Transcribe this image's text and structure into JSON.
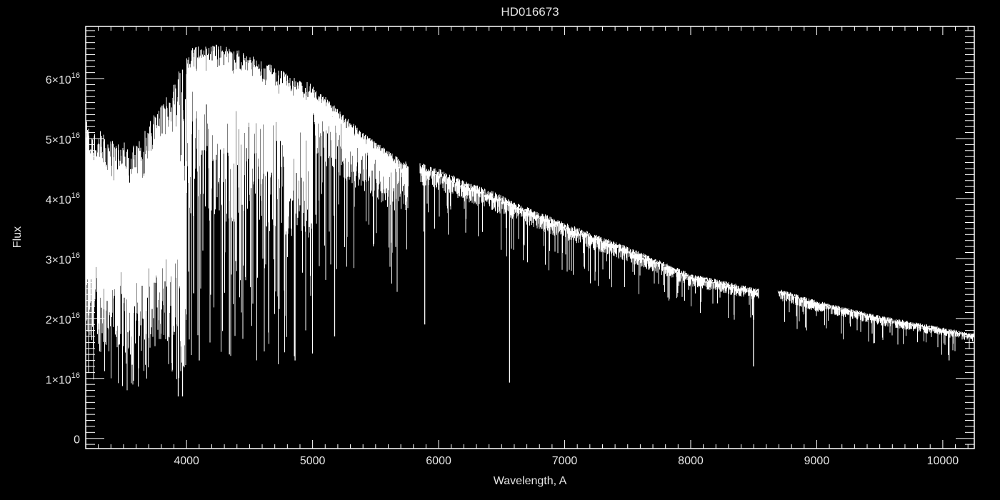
{
  "chart_data": {
    "type": "line",
    "title": "HD016673",
    "xlabel": "Wavelength, A",
    "ylabel": "Flux",
    "xlim": [
      3200,
      10250
    ],
    "ylim": [
      -1700000000000000.0,
      6.87e+16
    ],
    "x_ticks": [
      4000,
      5000,
      6000,
      7000,
      8000,
      9000,
      10000
    ],
    "x_tick_labels": [
      "4000",
      "5000",
      "6000",
      "7000",
      "8000",
      "9000",
      "10000"
    ],
    "y_ticks": [
      0,
      1e+16,
      2e+16,
      3e+16,
      4e+16,
      5e+16,
      6e+16
    ],
    "y_tick_labels": [
      {
        "mantissa": "0",
        "exponent": ""
      },
      {
        "mantissa": "1×10",
        "exponent": "16"
      },
      {
        "mantissa": "2×10",
        "exponent": "16"
      },
      {
        "mantissa": "3×10",
        "exponent": "16"
      },
      {
        "mantissa": "4×10",
        "exponent": "16"
      },
      {
        "mantissa": "5×10",
        "exponent": "16"
      },
      {
        "mantissa": "6×10",
        "exponent": "16"
      }
    ],
    "grid": false,
    "background_color": "#000000",
    "line_color": "#ffffff",
    "continuum_envelope": {
      "wavelength": [
        3200,
        3400,
        3600,
        3800,
        3900,
        4000,
        4200,
        4400,
        4600,
        4800,
        4900,
        5000,
        5200,
        5400,
        5600,
        5750,
        5850,
        6000,
        6200,
        6400,
        6600,
        7000,
        7500,
        8000,
        8530,
        8690,
        9000,
        9500,
        10000,
        10250
      ],
      "flux": [
        5.3e+16,
        5e+16,
        4.9e+16,
        5.6e+16,
        6e+16,
        6.5e+16,
        6.6e+16,
        6.5e+16,
        6.3e+16,
        6.1e+16,
        6e+16,
        5.9e+16,
        5.5e+16,
        5.1e+16,
        4.8e+16,
        4.6e+16,
        4.6e+16,
        4.5e+16,
        4.3e+16,
        4.15e+16,
        3.95e+16,
        3.6e+16,
        3.2e+16,
        2.75e+16,
        2.5e+16,
        2.5e+16,
        2.3e+16,
        2.05e+16,
        1.85e+16,
        1.75e+16
      ]
    },
    "data_gaps": [
      [
        5760,
        5850
      ],
      [
        8540,
        8690
      ]
    ],
    "strong_lines": [
      {
        "wavelength": 3934,
        "min_flux": 7000000000000000.0
      },
      {
        "wavelength": 3968,
        "min_flux": 7000000000000000.0
      },
      {
        "wavelength": 4101,
        "min_flux": 1.3e+16
      },
      {
        "wavelength": 4340,
        "min_flux": 1.4e+16
      },
      {
        "wavelength": 4861,
        "min_flux": 1.3e+16
      },
      {
        "wavelength": 5175,
        "min_flux": 1.7e+16
      },
      {
        "wavelength": 5890,
        "min_flux": 1.9e+16
      },
      {
        "wavelength": 6563,
        "min_flux": 9300000000000000.0
      },
      {
        "wavelength": 8498,
        "min_flux": 1.2e+16
      },
      {
        "wavelength": 10050,
        "min_flux": 1.3e+16
      }
    ]
  }
}
